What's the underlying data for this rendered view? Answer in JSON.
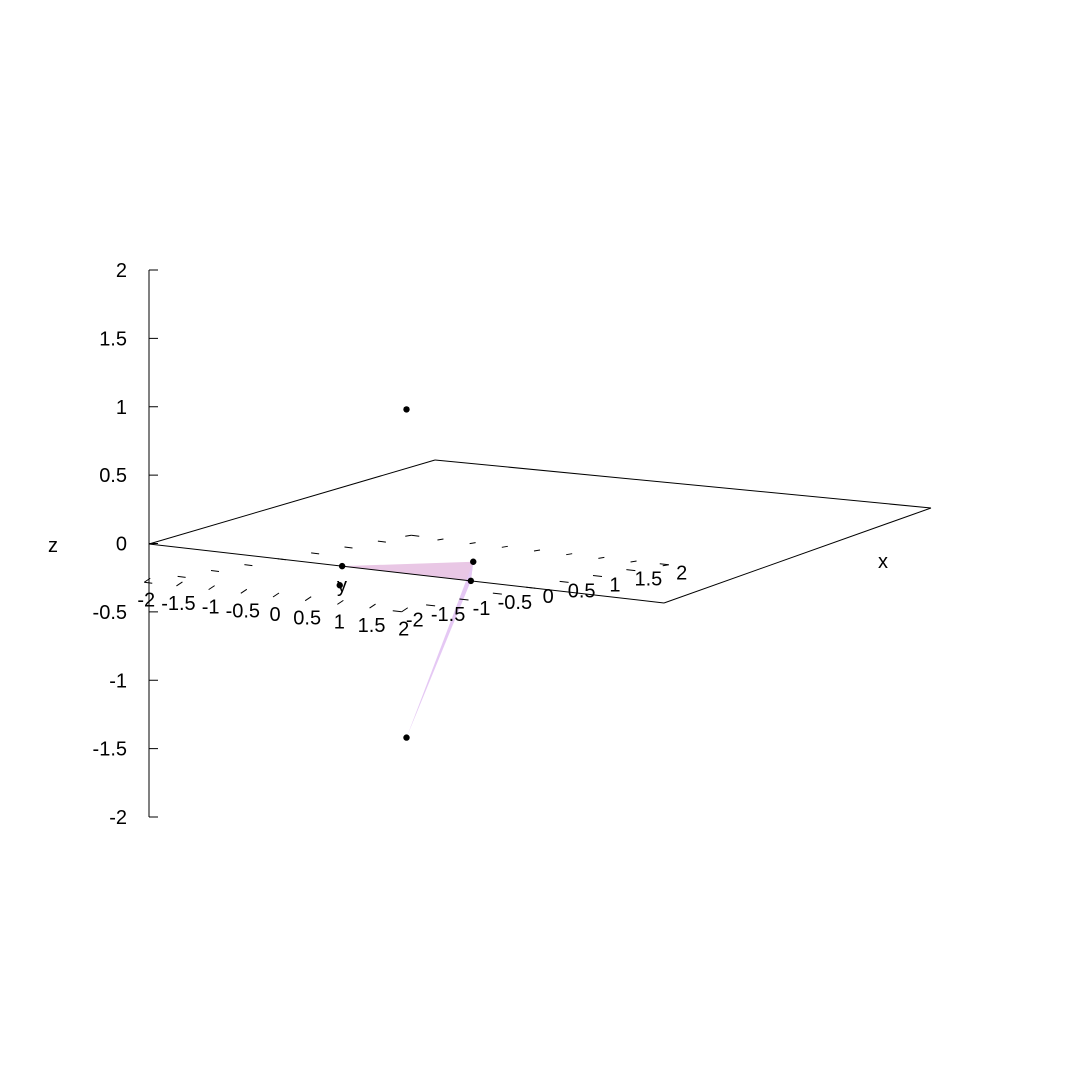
{
  "chart_data": {
    "type": "scatter",
    "xlabel": "x",
    "ylabel": "y",
    "zlabel": "z",
    "xlim": [
      -2,
      2
    ],
    "ylim": [
      -2,
      2
    ],
    "zlim": [
      -2,
      2
    ],
    "x_tick_labels": [
      "-2",
      "-1.5",
      "-1",
      "-0.5",
      "0",
      "0.5",
      "1",
      "1.5",
      "2"
    ],
    "y_tick_labels": [
      "-2",
      "-1.5",
      "-1",
      "-0.5",
      "0",
      "0.5",
      "1",
      "1.5",
      "2"
    ],
    "z_tick_labels": [
      "2",
      "1.5",
      "1",
      "0.5",
      "0",
      "-0.5",
      "-1",
      "-1.5",
      "-2"
    ],
    "points": [
      {
        "x": 0,
        "y": 0,
        "z": 1.2
      },
      {
        "x": 0,
        "y": 0,
        "z": -1.2
      },
      {
        "x": 1,
        "y": 0,
        "z": 0
      },
      {
        "x": -1,
        "y": 0,
        "z": 0
      },
      {
        "x": 0,
        "y": 1,
        "z": 0
      },
      {
        "x": 0,
        "y": -1,
        "z": 0
      }
    ],
    "faces": [
      {
        "vertices": [
          [
            1,
            0,
            0
          ],
          [
            0,
            -1,
            0
          ],
          [
            0,
            1,
            0
          ]
        ],
        "color": "#e9c7e5"
      },
      {
        "vertices": [
          [
            1,
            0,
            0
          ],
          [
            0,
            1,
            0
          ],
          [
            0,
            0,
            -1.2
          ]
        ],
        "color": "#e5c8f4"
      }
    ],
    "point_color": "#000000",
    "grid": false
  }
}
